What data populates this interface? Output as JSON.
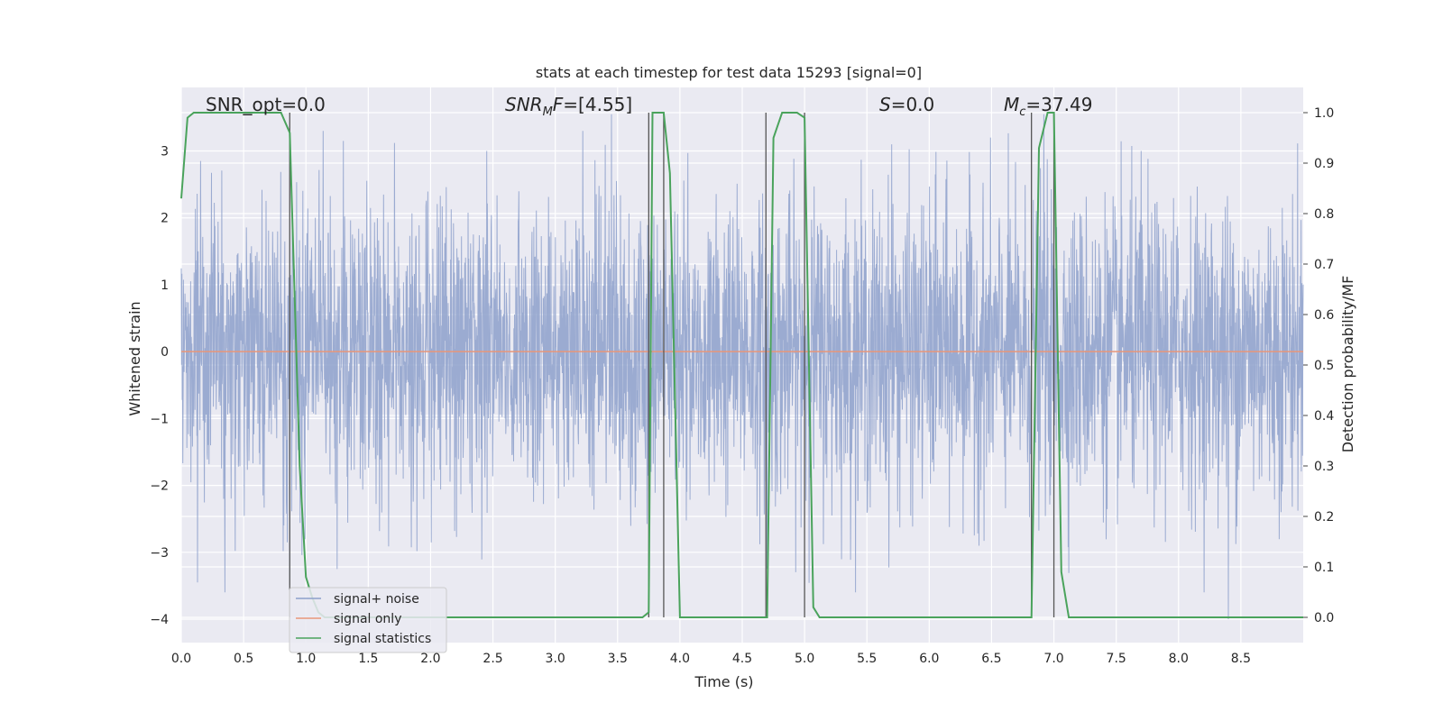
{
  "chart_data": {
    "type": "line",
    "title": "stats at each timestep for test data 15293 [signal=0]",
    "xlabel": "Time (s)",
    "ylabel_left": "Whitened strain",
    "ylabel_right": "Detection probability/MF",
    "xlim": [
      0,
      9
    ],
    "ylim_left": [
      -4.35,
      3.95
    ],
    "ylim_right": [
      -0.05,
      1.05
    ],
    "x_ticks": [
      "0.0",
      "0.5",
      "1.0",
      "1.5",
      "2.0",
      "2.5",
      "3.0",
      "3.5",
      "4.0",
      "4.5",
      "5.0",
      "5.5",
      "6.0",
      "6.5",
      "7.0",
      "7.5",
      "8.0",
      "8.5"
    ],
    "y_ticks_left": [
      "3",
      "2",
      "1",
      "0",
      "−1",
      "−2",
      "−3",
      "−4"
    ],
    "y_ticks_right": [
      "1.0",
      "0.9",
      "0.8",
      "0.7",
      "0.6",
      "0.5",
      "0.4",
      "0.3",
      "0.2",
      "0.1",
      "0.0"
    ],
    "grid": true,
    "legend_position": "lower-left",
    "annotations": [
      {
        "text": "SNR_opt=0.0",
        "x": 0.2
      },
      {
        "text": "SNRₘF=[4.55]",
        "x": 2.6,
        "html": "SNR<tspan font-size='14' baseline-shift='sub'>M</tspan>F=[4.55]",
        "italic_part": true
      },
      {
        "text": "S=0.0",
        "x": 5.6
      },
      {
        "text": "M_c=37.49",
        "x": 6.6
      }
    ],
    "annotation_labels": {
      "snr_opt": "SNR_opt=0.0",
      "snr_mf_main": "SNR",
      "snr_mf_sub": "M",
      "snr_mf_rest": "F=[4.55]",
      "s_italic": "S",
      "s_rest": "=0.0",
      "mc_italic": "M",
      "mc_sub": "c",
      "mc_rest": "=37.49"
    },
    "series": [
      {
        "name": "signal+ noise",
        "color": "#8da0cb",
        "style": "noise",
        "noise_std": 1.1,
        "noise_spikes": [
          [
            0.13,
            -3.45
          ],
          [
            0.85,
            -2.85
          ],
          [
            1.25,
            -3.25
          ],
          [
            1.3,
            3.15
          ],
          [
            3.45,
            3.55
          ],
          [
            3.45,
            -3.45
          ],
          [
            3.22,
            3.3
          ],
          [
            4.7,
            -3.25
          ],
          [
            5.7,
            3.1
          ],
          [
            6.05,
            2.65
          ],
          [
            8.4,
            -4.0
          ],
          [
            6.92,
            3.55
          ],
          [
            2.45,
            3.0
          ],
          [
            7.7,
            3.0
          ]
        ]
      },
      {
        "name": "signal only",
        "color": "#e8967a",
        "values_const": 0.0
      },
      {
        "name": "signal statistics",
        "color": "#4aa35c",
        "axis": "right",
        "x": [
          0.0,
          0.05,
          0.1,
          0.8,
          0.87,
          0.95,
          1.0,
          1.05,
          1.1,
          1.15,
          3.7,
          3.75,
          3.78,
          3.81,
          3.87,
          3.92,
          4.0,
          4.7,
          4.75,
          4.82,
          4.94,
          5.0,
          5.07,
          5.12,
          6.82,
          6.88,
          6.95,
          7.0,
          7.06,
          7.12,
          9.0
        ],
        "y": [
          0.83,
          0.99,
          1.0,
          1.0,
          0.96,
          0.3,
          0.08,
          0.04,
          0.01,
          0.0,
          0.0,
          0.01,
          1.0,
          1.0,
          1.0,
          0.88,
          0.0,
          0.0,
          0.95,
          1.0,
          1.0,
          0.99,
          0.02,
          0.0,
          0.0,
          0.93,
          1.0,
          1.0,
          0.09,
          0.0,
          0.0
        ]
      }
    ],
    "vlines": [
      0.87,
      3.75,
      3.87,
      4.69,
      5.0,
      6.82,
      7.0
    ]
  }
}
